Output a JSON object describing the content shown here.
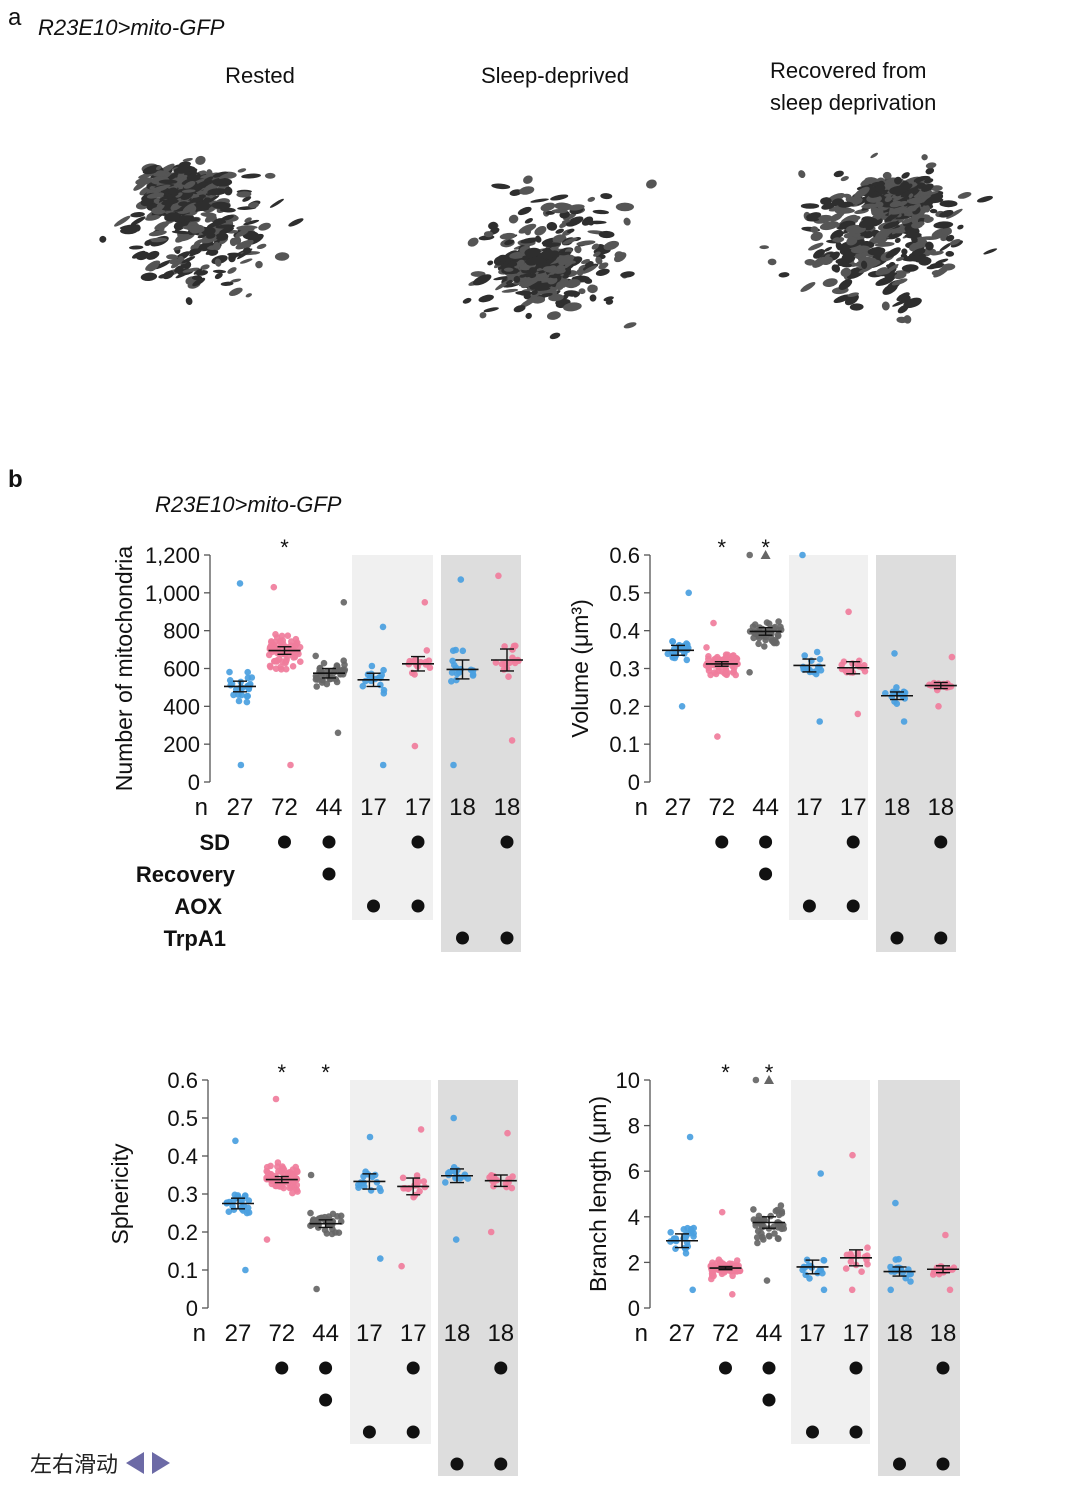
{
  "panel_a": {
    "letter": "a",
    "genotype": "R23E10>mito-GFP",
    "conditions": [
      "Rested",
      "Sleep-deprived",
      "Recovered from\nsleep deprivation"
    ]
  },
  "panel_b": {
    "letter": "b",
    "genotype": "R23E10>mito-GFP"
  },
  "colors": {
    "blue": "#4a9fe0",
    "pink": "#f07d9c",
    "gray": "#666666",
    "shade_light": "#f0f0f0",
    "shade_dark": "#dddddd"
  },
  "groups": {
    "n_label": "n",
    "n_values": [
      "27",
      "72",
      "44",
      "17",
      "17",
      "18",
      "18"
    ],
    "group_colors": [
      "blue",
      "pink",
      "gray",
      "blue",
      "pink",
      "blue",
      "pink"
    ],
    "factor_labels": [
      "SD",
      "Recovery",
      "AOX",
      "TrpA1"
    ],
    "factors": [
      [
        0,
        1,
        1,
        0,
        1,
        0,
        1
      ],
      [
        0,
        0,
        1,
        0,
        0,
        0,
        0
      ],
      [
        0,
        0,
        0,
        1,
        1,
        0,
        0
      ],
      [
        0,
        0,
        0,
        0,
        0,
        1,
        1
      ]
    ]
  },
  "chart_data": [
    {
      "type": "scatter",
      "title": "",
      "ylabel": "Number of mitochondria",
      "ylim": [
        0,
        1200
      ],
      "yticks": [
        0,
        200,
        400,
        600,
        800,
        1000,
        1200
      ],
      "ytick_labels": [
        "0",
        "200",
        "400",
        "600",
        "800",
        "1,000",
        "1,200"
      ],
      "means": [
        505,
        695,
        575,
        540,
        625,
        595,
        645
      ],
      "sems": [
        28,
        20,
        25,
        35,
        38,
        50,
        58
      ],
      "ranges": [
        [
          90,
          1050
        ],
        [
          90,
          1030
        ],
        [
          260,
          950
        ],
        [
          90,
          820
        ],
        [
          190,
          950
        ],
        [
          90,
          1070
        ],
        [
          220,
          1090
        ]
      ],
      "significance": [
        "",
        "*",
        "",
        "",
        "",
        "",
        ""
      ],
      "outliers": [
        [],
        [],
        [],
        [],
        [],
        [],
        []
      ],
      "show_factors": true
    },
    {
      "type": "scatter",
      "title": "",
      "ylabel": "Volume (μm³)",
      "ylim": [
        0,
        0.6
      ],
      "yticks": [
        0,
        0.1,
        0.2,
        0.3,
        0.4,
        0.5,
        0.6
      ],
      "ytick_labels": [
        "0",
        "0.1",
        "0.2",
        "0.3",
        "0.4",
        "0.5",
        "0.6"
      ],
      "means": [
        0.348,
        0.312,
        0.398,
        0.308,
        0.302,
        0.228,
        0.255
      ],
      "sems": [
        0.013,
        0.006,
        0.01,
        0.017,
        0.016,
        0.01,
        0.008
      ],
      "ranges": [
        [
          0.2,
          0.5
        ],
        [
          0.12,
          0.42
        ],
        [
          0.29,
          0.6
        ],
        [
          0.16,
          0.6
        ],
        [
          0.18,
          0.45
        ],
        [
          0.16,
          0.34
        ],
        [
          0.2,
          0.33
        ]
      ],
      "significance": [
        "",
        "*",
        "*",
        "",
        "",
        "",
        ""
      ],
      "outliers": [
        [],
        [],
        [
          0.6
        ],
        [],
        [],
        [],
        []
      ],
      "show_factors": true
    },
    {
      "type": "scatter",
      "title": "",
      "ylabel": "Sphericity",
      "ylim": [
        0,
        0.6
      ],
      "yticks": [
        0,
        0.1,
        0.2,
        0.3,
        0.4,
        0.5,
        0.6
      ],
      "ytick_labels": [
        "0",
        "0.1",
        "0.2",
        "0.3",
        "0.4",
        "0.5",
        "0.6"
      ],
      "means": [
        0.275,
        0.338,
        0.222,
        0.333,
        0.32,
        0.348,
        0.335
      ],
      "sems": [
        0.014,
        0.008,
        0.01,
        0.02,
        0.022,
        0.018,
        0.015
      ],
      "ranges": [
        [
          0.1,
          0.44
        ],
        [
          0.18,
          0.55
        ],
        [
          0.05,
          0.35
        ],
        [
          0.13,
          0.45
        ],
        [
          0.11,
          0.47
        ],
        [
          0.18,
          0.5
        ],
        [
          0.2,
          0.46
        ]
      ],
      "significance": [
        "",
        "*",
        "*",
        "",
        "",
        "",
        ""
      ],
      "outliers": [
        [],
        [],
        [],
        [],
        [],
        [],
        []
      ],
      "show_factors": false
    },
    {
      "type": "scatter",
      "title": "",
      "ylabel": "Branch length (μm)",
      "ylim": [
        0,
        10
      ],
      "yticks": [
        0,
        2,
        4,
        6,
        8,
        10
      ],
      "ytick_labels": [
        "0",
        "2",
        "4",
        "6",
        "8",
        "10"
      ],
      "means": [
        2.95,
        1.75,
        3.75,
        1.8,
        2.2,
        1.6,
        1.7
      ],
      "sems": [
        0.3,
        0.07,
        0.25,
        0.3,
        0.35,
        0.2,
        0.15
      ],
      "ranges": [
        [
          0.8,
          7.5
        ],
        [
          0.6,
          4.2
        ],
        [
          1.2,
          10
        ],
        [
          0.8,
          5.9
        ],
        [
          0.8,
          6.7
        ],
        [
          0.8,
          4.6
        ],
        [
          0.8,
          3.2
        ]
      ],
      "significance": [
        "",
        "*",
        "*",
        "",
        "",
        "",
        ""
      ],
      "outliers": [
        [],
        [],
        [
          10
        ],
        [],
        [],
        [],
        []
      ],
      "show_factors": false
    }
  ],
  "nav": {
    "label": "左右滑动"
  }
}
